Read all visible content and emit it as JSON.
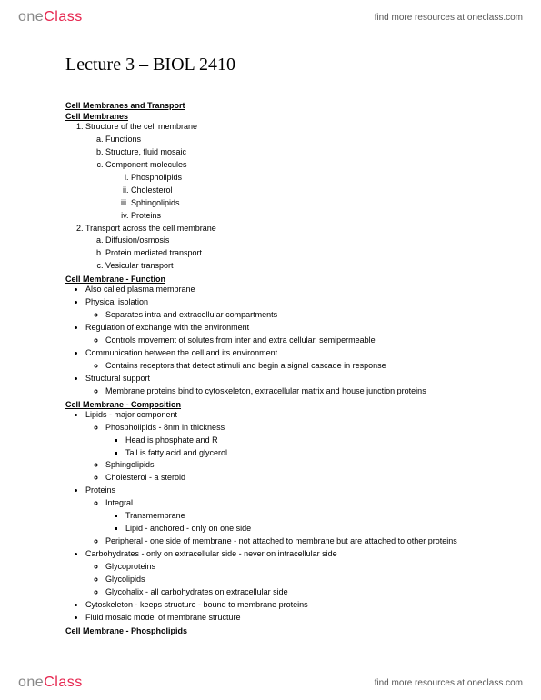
{
  "brand": {
    "part1": "one",
    "part2": "Class"
  },
  "header": {
    "link": "find more resources at oneclass.com"
  },
  "footer": {
    "link": "find more resources at oneclass.com"
  },
  "title": "Lecture 3 – BIOL 2410",
  "s1": {
    "head1": "Cell Membranes and Transport",
    "head2": "Cell Membranes",
    "n1": "Structure of the cell membrane",
    "n1a": "Functions",
    "n1b": "Structure, fluid mosaic",
    "n1c": "Component molecules",
    "n1c1": "Phospholipids",
    "n1c2": "Cholesterol",
    "n1c3": "Sphingolipids",
    "n1c4": "Proteins",
    "n2": "Transport across the cell membrane",
    "n2a": "Diffusion/osmosis",
    "n2b": "Protein mediated transport",
    "n2c": "Vesicular transport"
  },
  "s2": {
    "head": "Cell Membrane - Function",
    "b1": "Also called plasma membrane",
    "b2": "Physical isolation",
    "b2a": "Separates intra and extracellular compartments",
    "b3": "Regulation of exchange with the environment",
    "b3a": "Controls movement of solutes from inter and extra cellular, semipermeable",
    "b4": "Communication between the cell and its environment",
    "b4a": "Contains receptors that detect stimuli and begin a signal cascade in response",
    "b5": "Structural support",
    "b5a": "Membrane proteins bind to cytoskeleton, extracellular matrix and house junction proteins"
  },
  "s3": {
    "head": "Cell Membrane - Composition",
    "b1": "Lipids - major component",
    "b1a": "Phospholipids - 8nm in thickness",
    "b1a1": "Head is phosphate and R",
    "b1a2": "Tail is fatty acid and glycerol",
    "b1b": "Sphingolipids",
    "b1c": "Cholesterol - a steroid",
    "b2": "Proteins",
    "b2a": "Integral",
    "b2a1": "Transmembrane",
    "b2a2": "Lipid - anchored - only on one side",
    "b2b": "Peripheral - one side of membrane - not attached to membrane but are attached to other proteins",
    "b3": "Carbohydrates - only on extracellular side - never on intracellular side",
    "b3a": "Glycoproteins",
    "b3b": "Glycolipids",
    "b3c": "Glycohalix - all carbohydrates on extracellular side",
    "b4": "Cytoskeleton - keeps structure - bound to membrane proteins",
    "b5": "Fluid mosaic model of membrane structure"
  },
  "s4": {
    "head": "Cell Membrane - Phospholipids"
  }
}
